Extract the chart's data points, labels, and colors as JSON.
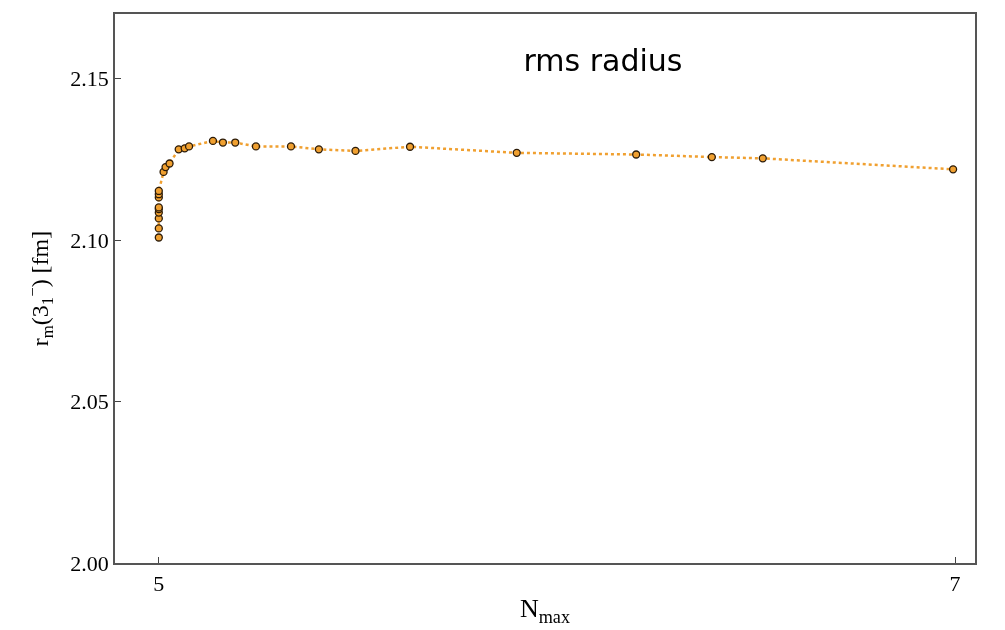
{
  "chart_data": {
    "type": "line",
    "title": "rms radius",
    "xlabel": "N$_{max}$",
    "ylabel": "r$_{m}$(3$_{1}$$^{−}$) [fm]",
    "xlim": [
      4.89,
      7.05
    ],
    "xticks": [
      5,
      7
    ],
    "ylim": [
      2.0,
      2.17
    ],
    "yticks": [
      {
        "value": 2.0,
        "label": "2.00"
      },
      2.05,
      {
        "value": 2.1,
        "label": "2.10"
      },
      2.15
    ],
    "marker": "circle",
    "line_style": "dotted",
    "series": [
      {
        "color": "#f0a030",
        "x": [
          5.0,
          5.0,
          5.0,
          5.0,
          5.0,
          5.0,
          5.0,
          5.0,
          5.0,
          5.012,
          5.017,
          5.027,
          5.05,
          5.065,
          5.076,
          5.136,
          5.161,
          5.192,
          5.244,
          5.332,
          5.402,
          5.494,
          5.631,
          5.899,
          6.199,
          6.389,
          6.517,
          6.995
        ],
        "values": [
          2.1008,
          2.1036,
          2.1067,
          2.1085,
          2.1096,
          2.1101,
          2.1132,
          2.1142,
          2.1152,
          2.1211,
          2.1226,
          2.1237,
          2.1281,
          2.1284,
          2.129,
          2.1307,
          2.1302,
          2.1302,
          2.129,
          2.129,
          2.1281,
          2.1276,
          2.1289,
          2.127,
          2.1265,
          2.1257,
          2.1253,
          2.1219
        ]
      }
    ]
  }
}
